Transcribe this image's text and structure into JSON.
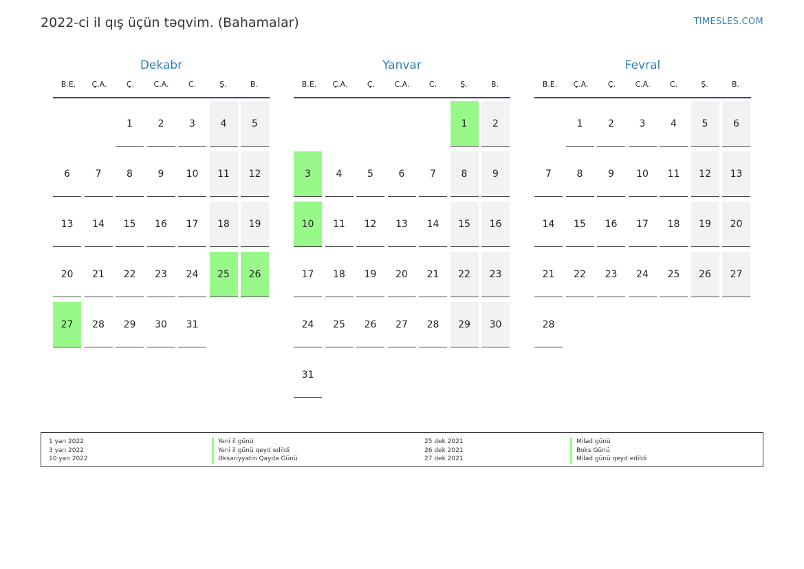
{
  "header": {
    "title": "2022-ci il qış üçün təqvim. (Bahamalar)",
    "brand": "TIMESLES.COM"
  },
  "colors": {
    "accent": "#2f7fbf",
    "holiday": "#98f98a",
    "weekend": "#f2f2f2"
  },
  "weekdays": [
    "B.E.",
    "Ç.A.",
    "Ç.",
    "C.A.",
    "C.",
    "Ş.",
    "B."
  ],
  "months": [
    {
      "name": "Dekabr",
      "start_weekday": 2,
      "days": 31,
      "holidays": [
        25,
        26,
        27
      ]
    },
    {
      "name": "Yanvar",
      "start_weekday": 5,
      "days": 31,
      "holidays": [
        1,
        3,
        10
      ]
    },
    {
      "name": "Fevral",
      "start_weekday": 1,
      "days": 28,
      "holidays": []
    }
  ],
  "legend": {
    "left": [
      {
        "date": "1 yan 2022",
        "name": "Yeni il günü"
      },
      {
        "date": "3 yan 2022",
        "name": "Yeni il günü qeyd edildi"
      },
      {
        "date": "10 yan 2022",
        "name": "Əksəriyyətin Qayda Günü"
      }
    ],
    "right": [
      {
        "date": "25 dek 2021",
        "name": "Milad günü"
      },
      {
        "date": "26 dek 2021",
        "name": "Boks Günü"
      },
      {
        "date": "27 dek 2021",
        "name": "Milad günü qeyd edildi"
      }
    ]
  }
}
